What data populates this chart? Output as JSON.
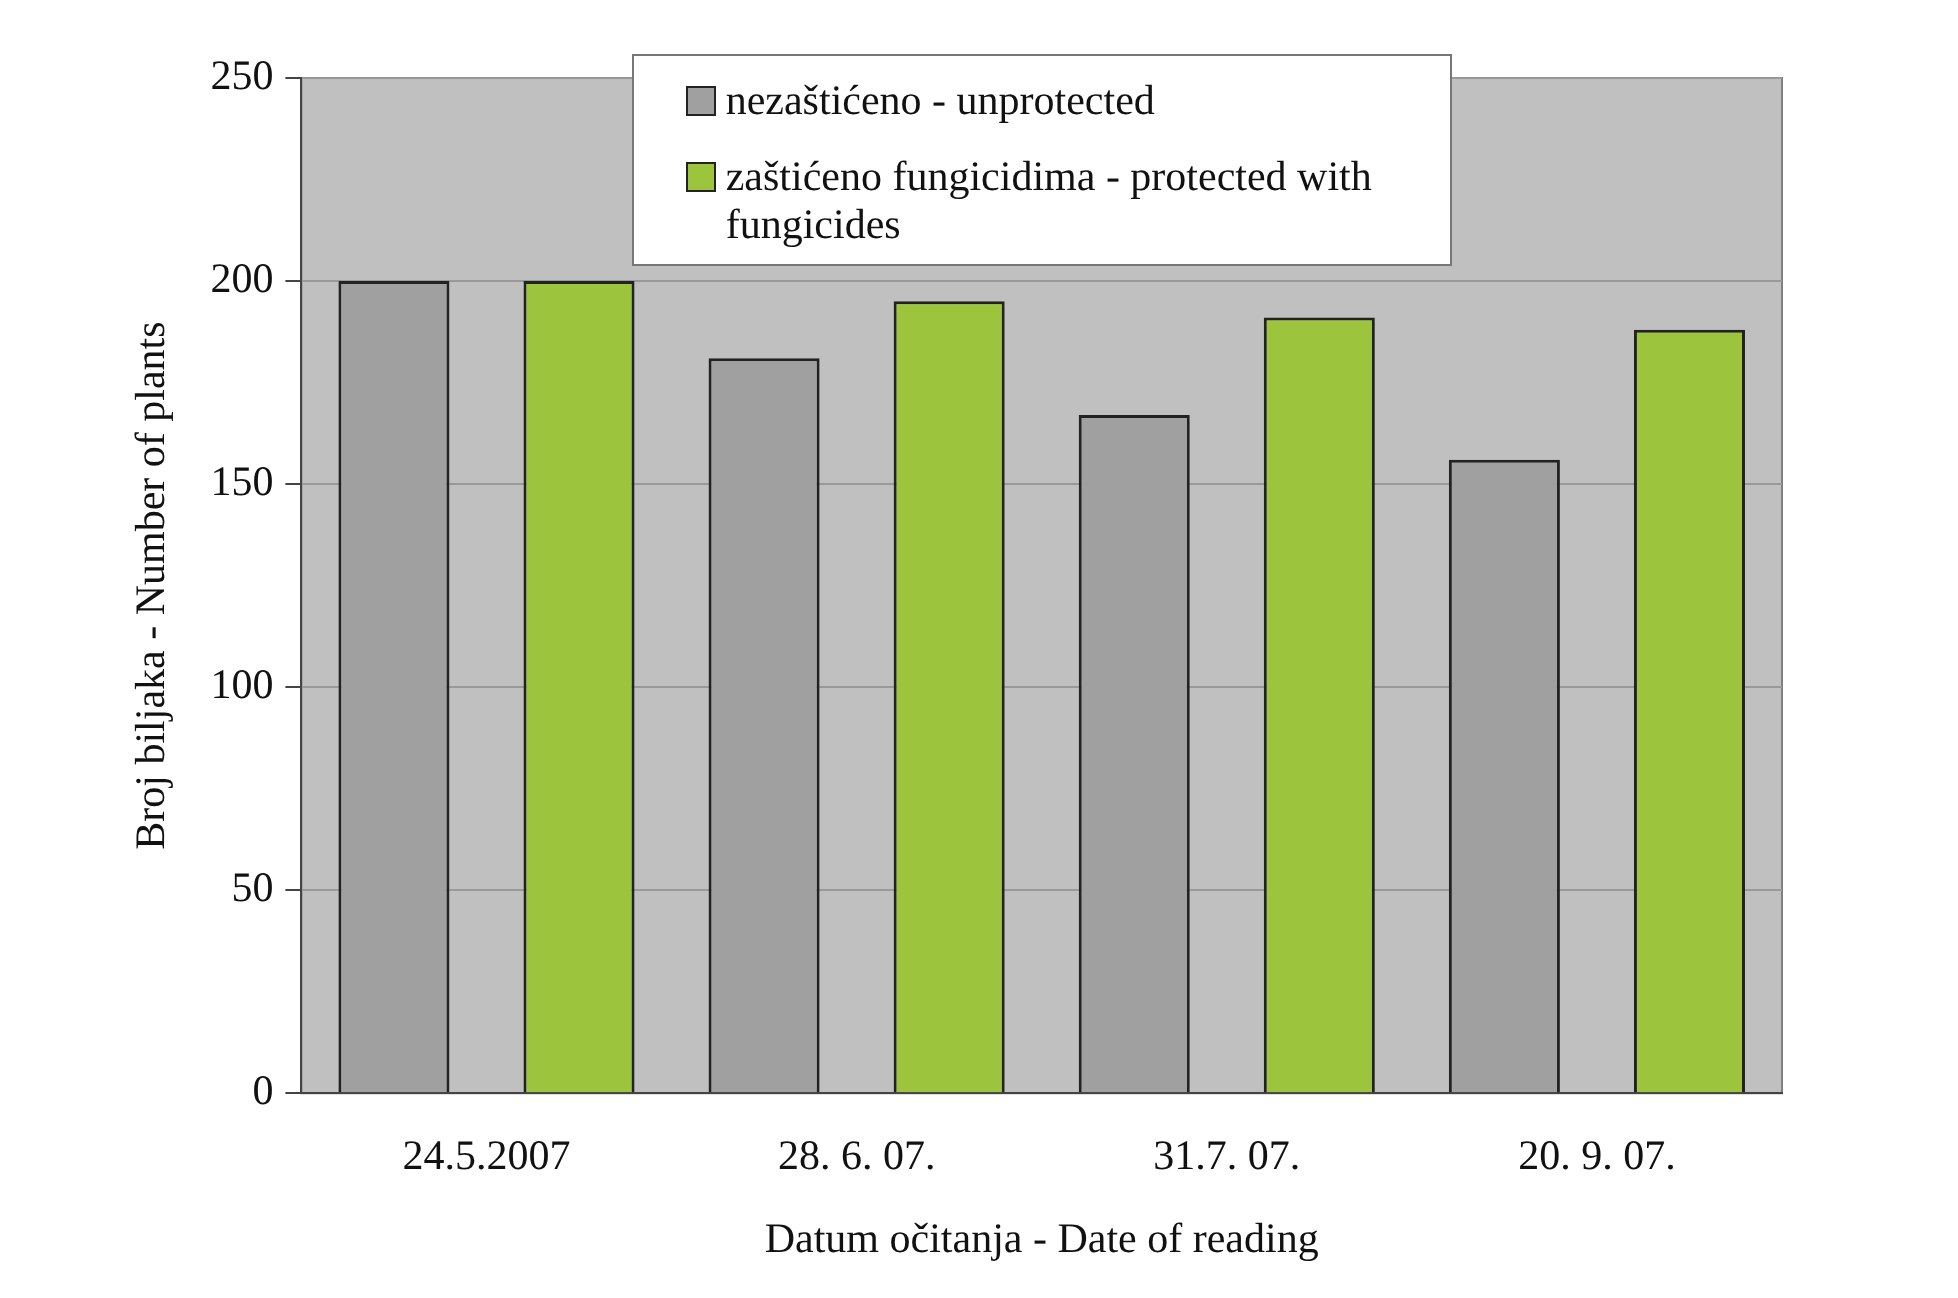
{
  "chart_data": {
    "type": "bar",
    "xlabel": "Datum očitanja - Date of reading",
    "ylabel": "Broj biljaka - Number of plants",
    "categories": [
      "24.5.2007",
      "28. 6. 07.",
      "31.7. 07.",
      "20. 9. 07."
    ],
    "series": [
      {
        "name": "nezaštićeno - unprotected",
        "color": "#a0a0a0",
        "values": [
          200,
          181,
          167,
          156
        ]
      },
      {
        "name": "zaštićeno fungicidima - protected with fungicides",
        "color": "#9cc43c",
        "values": [
          200,
          195,
          191,
          188
        ]
      }
    ],
    "ylim": [
      0,
      250
    ],
    "yticks": [
      0,
      50,
      100,
      150,
      200,
      250
    ],
    "grid": "y",
    "legend": "top"
  }
}
